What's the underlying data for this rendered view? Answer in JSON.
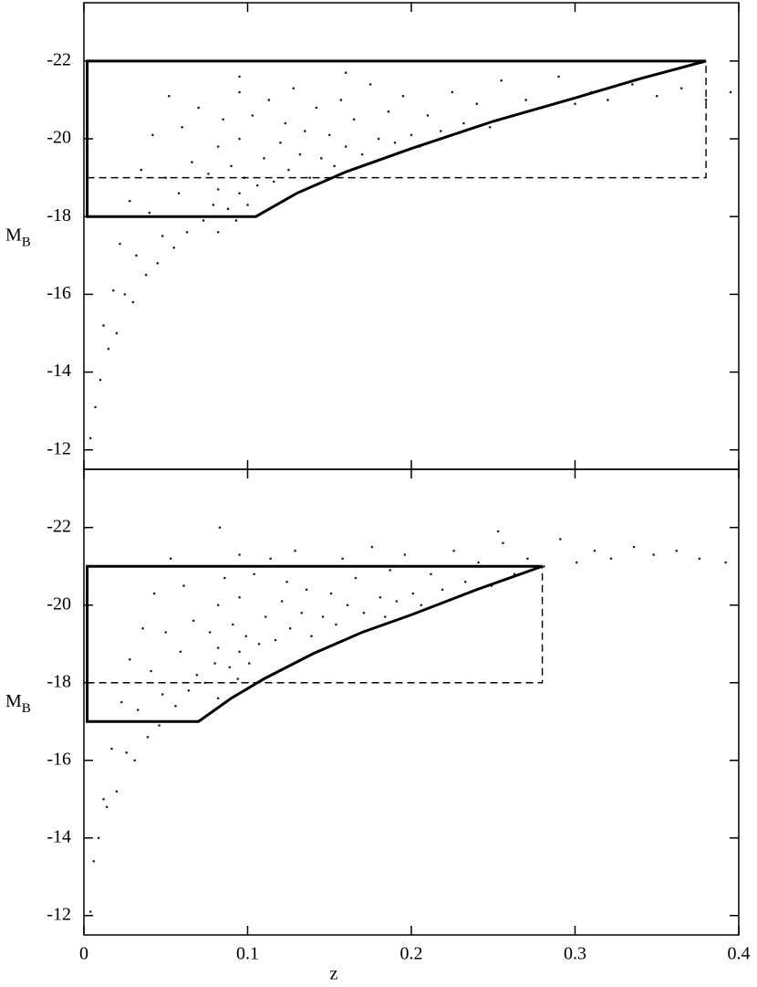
{
  "chart_data": [
    {
      "type": "scatter",
      "y_label": "M",
      "y_label_sub": "B",
      "show_xtick_labels": false,
      "xlim": [
        0,
        0.4
      ],
      "ylim": [
        -11.5,
        -23.5
      ],
      "xticks": [
        0,
        0.1,
        0.2,
        0.3,
        0.4
      ],
      "yticks": [
        -12,
        -14,
        -16,
        -18,
        -20,
        -22
      ],
      "color": "#222222",
      "x": [
        0.004,
        0.007,
        0.01,
        0.012,
        0.015,
        0.018,
        0.02,
        0.022,
        0.025,
        0.028,
        0.03,
        0.032,
        0.035,
        0.038,
        0.04,
        0.042,
        0.045,
        0.048,
        0.05,
        0.052,
        0.055,
        0.058,
        0.06,
        0.063,
        0.066,
        0.068,
        0.07,
        0.073,
        0.076,
        0.079,
        0.082,
        0.082,
        0.082,
        0.085,
        0.088,
        0.09,
        0.093,
        0.095,
        0.095,
        0.095,
        0.098,
        0.1,
        0.103,
        0.106,
        0.11,
        0.113,
        0.116,
        0.12,
        0.123,
        0.125,
        0.128,
        0.132,
        0.135,
        0.138,
        0.142,
        0.145,
        0.15,
        0.153,
        0.157,
        0.16,
        0.165,
        0.17,
        0.175,
        0.18,
        0.183,
        0.186,
        0.19,
        0.195,
        0.2,
        0.205,
        0.21,
        0.218,
        0.225,
        0.232,
        0.24,
        0.248,
        0.255,
        0.262,
        0.27,
        0.28,
        0.29,
        0.3,
        0.31,
        0.32,
        0.335,
        0.35,
        0.365,
        0.38,
        0.395,
        0.16,
        0.095
      ],
      "y": [
        -12.3,
        -13.1,
        -13.8,
        -15.2,
        -14.6,
        -16.1,
        -15.0,
        -17.3,
        -16.0,
        -18.4,
        -15.8,
        -17.0,
        -19.2,
        -16.5,
        -18.1,
        -20.1,
        -16.8,
        -17.5,
        -19.0,
        -21.1,
        -17.2,
        -18.6,
        -20.3,
        -17.6,
        -19.4,
        -18.0,
        -20.8,
        -17.9,
        -19.1,
        -18.3,
        -17.6,
        -19.8,
        -18.7,
        -20.5,
        -18.2,
        -19.3,
        -17.9,
        -18.6,
        -20.0,
        -21.2,
        -19.0,
        -18.3,
        -20.6,
        -18.8,
        -19.5,
        -21.0,
        -18.9,
        -19.9,
        -20.4,
        -19.2,
        -21.3,
        -19.6,
        -20.2,
        -19.0,
        -20.8,
        -19.5,
        -20.1,
        -19.3,
        -21.0,
        -19.8,
        -20.5,
        -19.6,
        -21.4,
        -20.0,
        -19.5,
        -20.7,
        -19.9,
        -21.1,
        -20.1,
        -19.8,
        -20.6,
        -20.2,
        -21.2,
        -20.4,
        -20.9,
        -20.3,
        -21.5,
        -20.6,
        -21.0,
        -20.8,
        -21.6,
        -20.9,
        -21.2,
        -21.0,
        -21.4,
        -21.1,
        -21.3,
        -21.0,
        -21.2,
        -21.7,
        -21.6
      ],
      "lines": [
        {
          "style": "solid",
          "x": [
            0.38,
            0.002,
            0.002,
            0.105,
            0.13,
            0.16,
            0.2,
            0.25,
            0.3,
            0.34,
            0.38
          ],
          "y": [
            -22,
            -22,
            -18,
            -18,
            -18.6,
            -19.15,
            -19.75,
            -20.45,
            -21.05,
            -21.55,
            -22
          ]
        },
        {
          "style": "dashed",
          "x": [
            0.002,
            0.38,
            0.38
          ],
          "y": [
            -19,
            -19,
            -22
          ]
        }
      ]
    },
    {
      "type": "scatter",
      "y_label": "M",
      "y_label_sub": "B",
      "x_label": "z",
      "show_xtick_labels": true,
      "xlim": [
        0,
        0.4
      ],
      "ylim": [
        -11.5,
        -23.5
      ],
      "xticks": [
        0,
        0.1,
        0.2,
        0.3,
        0.4
      ],
      "yticks": [
        -12,
        -14,
        -16,
        -18,
        -20,
        -22
      ],
      "color": "#222222",
      "x": [
        0.004,
        0.006,
        0.009,
        0.012,
        0.014,
        0.017,
        0.02,
        0.023,
        0.026,
        0.028,
        0.031,
        0.033,
        0.036,
        0.039,
        0.041,
        0.043,
        0.046,
        0.048,
        0.05,
        0.053,
        0.056,
        0.059,
        0.061,
        0.064,
        0.067,
        0.069,
        0.071,
        0.074,
        0.077,
        0.08,
        0.082,
        0.082,
        0.082,
        0.086,
        0.089,
        0.091,
        0.094,
        0.095,
        0.095,
        0.095,
        0.099,
        0.101,
        0.104,
        0.107,
        0.111,
        0.114,
        0.117,
        0.121,
        0.124,
        0.126,
        0.129,
        0.133,
        0.136,
        0.139,
        0.143,
        0.146,
        0.151,
        0.154,
        0.158,
        0.161,
        0.166,
        0.171,
        0.176,
        0.181,
        0.184,
        0.187,
        0.191,
        0.196,
        0.201,
        0.206,
        0.212,
        0.219,
        0.226,
        0.233,
        0.241,
        0.249,
        0.256,
        0.263,
        0.271,
        0.281,
        0.291,
        0.301,
        0.312,
        0.322,
        0.336,
        0.348,
        0.362,
        0.376,
        0.392,
        0.083,
        0.253
      ],
      "y": [
        -12.1,
        -13.4,
        -14.0,
        -15.0,
        -14.8,
        -16.3,
        -15.2,
        -17.5,
        -16.2,
        -18.6,
        -16.0,
        -17.3,
        -19.4,
        -16.6,
        -18.3,
        -20.3,
        -16.9,
        -17.7,
        -19.3,
        -21.2,
        -17.4,
        -18.8,
        -20.5,
        -17.8,
        -19.6,
        -18.2,
        -21.0,
        -18.0,
        -19.3,
        -18.5,
        -17.6,
        -20.0,
        -18.9,
        -20.7,
        -18.4,
        -19.5,
        -18.1,
        -18.8,
        -20.2,
        -21.3,
        -19.2,
        -18.5,
        -20.8,
        -19.0,
        -19.7,
        -21.2,
        -19.1,
        -20.1,
        -20.6,
        -19.4,
        -21.4,
        -19.8,
        -20.4,
        -19.2,
        -21.0,
        -19.7,
        -20.3,
        -19.5,
        -21.2,
        -20.0,
        -20.7,
        -19.8,
        -21.5,
        -20.2,
        -19.7,
        -20.9,
        -20.1,
        -21.3,
        -20.3,
        -20.0,
        -20.8,
        -20.4,
        -21.4,
        -20.6,
        -21.1,
        -20.5,
        -21.6,
        -20.8,
        -21.2,
        -21.0,
        -21.7,
        -21.1,
        -21.4,
        -21.2,
        -21.5,
        -21.3,
        -21.4,
        -21.2,
        -21.1,
        -22.0,
        -21.9
      ],
      "lines": [
        {
          "style": "solid",
          "x": [
            0.28,
            0.002,
            0.002,
            0.07,
            0.09,
            0.11,
            0.14,
            0.17,
            0.2,
            0.24,
            0.28
          ],
          "y": [
            -21,
            -21,
            -17,
            -17,
            -17.6,
            -18.1,
            -18.75,
            -19.3,
            -19.75,
            -20.4,
            -21
          ]
        },
        {
          "style": "dashed",
          "x": [
            0.002,
            0.28,
            0.28
          ],
          "y": [
            -18,
            -18,
            -21
          ]
        }
      ]
    }
  ]
}
